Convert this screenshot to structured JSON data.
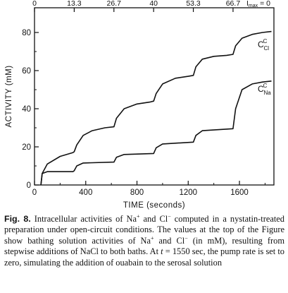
{
  "chart_data": {
    "type": "line",
    "xlabel": "TIME (seconds)",
    "ylabel": "ACTIVITY (mM)",
    "xlim": [
      0,
      1850
    ],
    "ylim": [
      0,
      85
    ],
    "x_ticks": [
      0,
      400,
      800,
      1200,
      1600
    ],
    "y_ticks": [
      0,
      20,
      40,
      60,
      80
    ],
    "x_tick_labels": [
      "0",
      "400",
      "800",
      "1200",
      "1600"
    ],
    "y_tick_labels": [
      "0",
      "20",
      "40",
      "60",
      "80"
    ],
    "top_axis": {
      "positions": [
        0,
        310,
        620,
        930,
        1240,
        1550
      ],
      "labels": [
        "0",
        "13.3",
        "26.7",
        "40",
        "53.3",
        "66.7"
      ],
      "end_label": "I",
      "end_label_sub": "max",
      "end_label_suffix": " = 0"
    },
    "series": [
      {
        "name": "C",
        "sup": "C",
        "sub": "Cl",
        "x": [
          50,
          60,
          100,
          200,
          300,
          310,
          330,
          380,
          450,
          550,
          620,
          640,
          700,
          800,
          900,
          930,
          950,
          1000,
          1100,
          1200,
          1240,
          1260,
          1310,
          1400,
          1500,
          1550,
          1570,
          1620,
          1700,
          1780,
          1850
        ],
        "y": [
          0,
          6,
          11,
          15,
          17,
          17.5,
          21,
          26,
          28.5,
          30,
          30.5,
          35,
          40,
          42.5,
          43.5,
          44,
          48,
          53,
          56,
          57,
          57.5,
          62,
          66,
          67.5,
          68,
          68.5,
          73,
          77,
          79,
          80,
          80.5
        ]
      },
      {
        "name": "C",
        "sup": "C",
        "sub": "Na",
        "x": [
          50,
          60,
          100,
          300,
          310,
          330,
          380,
          620,
          640,
          700,
          930,
          950,
          1000,
          1240,
          1260,
          1310,
          1550,
          1570,
          1620,
          1700,
          1780,
          1850
        ],
        "y": [
          0,
          6,
          7,
          7,
          7.5,
          10,
          11.5,
          12,
          14.5,
          16,
          16.5,
          19.5,
          21.5,
          22.5,
          26,
          28.5,
          29.5,
          40,
          50,
          53,
          54,
          54.5
        ]
      }
    ]
  },
  "caption": {
    "label": "Fig. 8.",
    "text_1": " Intracellular activities of Na",
    "sup_1": "+",
    "text_2": " and Cl",
    "sup_2": "−",
    "text_3": " computed in a nystatin-treated preparation under open-circuit conditions. The values at the top of the Figure show bathing solution activities of Na",
    "sup_3": "+",
    "text_4": " and Cl",
    "sup_4": "−",
    "text_5": " (in mM), resulting from stepwise additions of NaCl to both baths. At ",
    "italic_t": "t",
    "text_6": " = 1550 sec, the pump rate is set to zero, simulating the addition of ouabain to the serosal solution"
  }
}
